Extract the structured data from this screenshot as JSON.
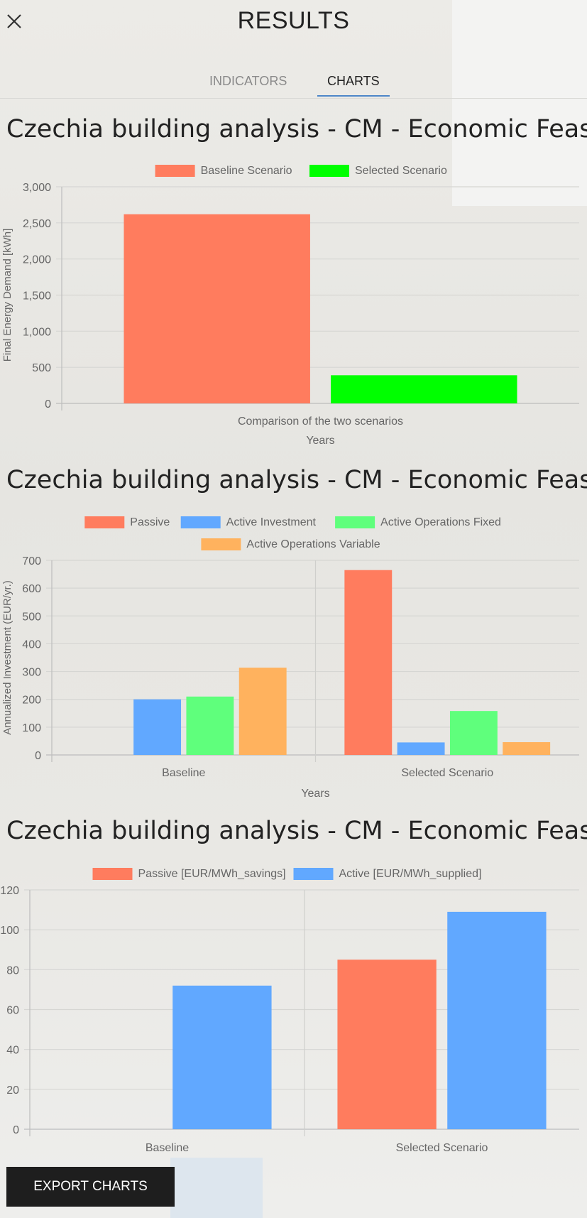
{
  "header": {
    "title": "RESULTS"
  },
  "tabs": [
    {
      "label": "INDICATORS"
    },
    {
      "label": "CHARTS"
    }
  ],
  "export_label": "EXPORT CHARTS",
  "colors": {
    "passive": "#ff7c5e",
    "active_investment": "#61a8ff",
    "active_fixed": "#5fff7c",
    "active_variable": "#ffb25e",
    "selected": "#00ff00"
  },
  "chart_data": [
    {
      "type": "bar",
      "title": "Czechia building analysis - CM - Economic Feasibility",
      "xlabel": "Years",
      "ylabel": "Final Energy Demand [kWh]",
      "categories": [
        "Comparison of the two scenarios"
      ],
      "ylim": [
        0,
        3000
      ],
      "yticks": [
        "3,000",
        "2,500",
        "2,000",
        "1,500",
        "1,000",
        "500",
        "0"
      ],
      "series": [
        {
          "name": "Baseline Scenario",
          "color": "#ff7c5e",
          "values": [
            2620
          ]
        },
        {
          "name": "Selected Scenario",
          "color": "#00ff00",
          "values": [
            390
          ]
        }
      ]
    },
    {
      "type": "bar",
      "title": "Czechia building analysis - CM - Economic Feasibility",
      "xlabel": "Years",
      "ylabel": "Annualized Investment (EUR/yr.)",
      "categories": [
        "Baseline",
        "Selected Scenario"
      ],
      "ylim": [
        0,
        700
      ],
      "yticks": [
        "700",
        "600",
        "500",
        "400",
        "300",
        "200",
        "100",
        "0"
      ],
      "series": [
        {
          "name": "Passive",
          "color": "#ff7c5e",
          "values": [
            0,
            665
          ]
        },
        {
          "name": "Active Investment",
          "color": "#61a8ff",
          "values": [
            200,
            45
          ]
        },
        {
          "name": "Active Operations Fixed",
          "color": "#5fff7c",
          "values": [
            210,
            158
          ]
        },
        {
          "name": "Active Operations Variable",
          "color": "#ffb25e",
          "values": [
            314,
            46
          ]
        }
      ]
    },
    {
      "type": "bar",
      "title": "Czechia building analysis - CM - Economic Feasibility",
      "xlabel": "",
      "ylabel": "",
      "categories": [
        "Baseline",
        "Selected Scenario"
      ],
      "ylim": [
        0,
        120
      ],
      "yticks": [
        "120",
        "100",
        "80",
        "60",
        "40",
        "20",
        "0"
      ],
      "series": [
        {
          "name": "Passive [EUR/MWh_savings]",
          "color": "#ff7c5e",
          "values": [
            0,
            85
          ]
        },
        {
          "name": "Active [EUR/MWh_supplied]",
          "color": "#61a8ff",
          "values": [
            72,
            109
          ]
        }
      ]
    }
  ]
}
